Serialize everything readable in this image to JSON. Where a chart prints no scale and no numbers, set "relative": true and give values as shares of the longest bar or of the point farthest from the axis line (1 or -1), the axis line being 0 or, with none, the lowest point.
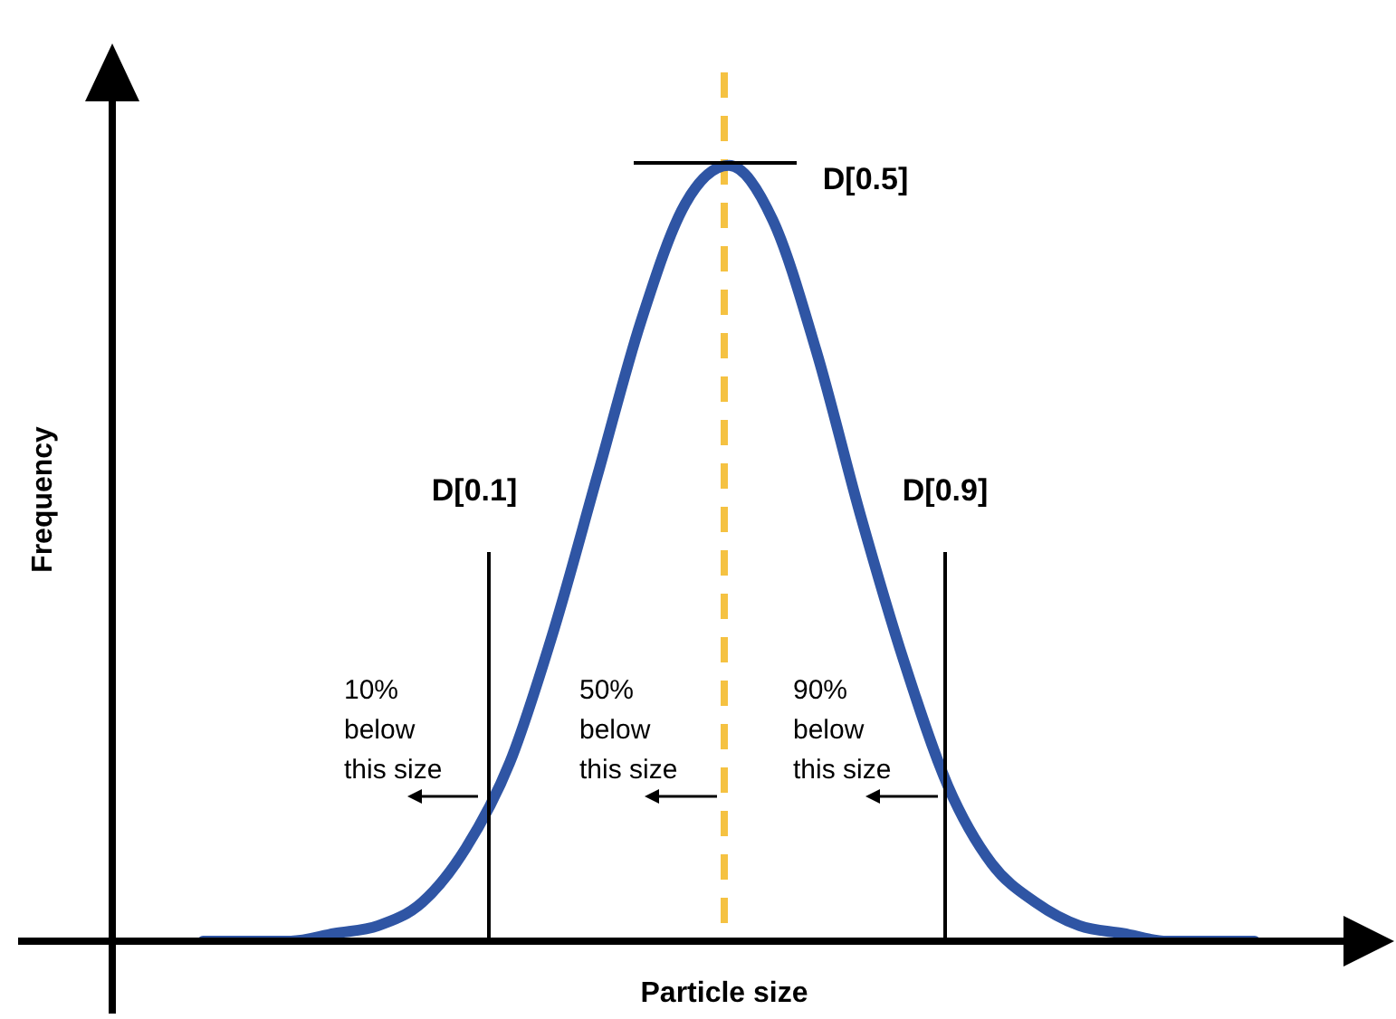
{
  "chart_data": {
    "type": "line",
    "relative": true,
    "xlabel": "Particle size",
    "ylabel": "Frequency",
    "categories": [
      null,
      null,
      null,
      null,
      null,
      null,
      null,
      null,
      null,
      null,
      null,
      null,
      null,
      null,
      null,
      null,
      null,
      null,
      null,
      null,
      null,
      null,
      null,
      null,
      null
    ],
    "series": [
      {
        "color": "#2f55a4",
        "values": [
          0,
          0,
          0,
          0.01,
          0.02,
          0.05,
          0.12,
          0.23,
          0.4,
          0.6,
          0.8,
          0.95,
          1,
          0.93,
          0.76,
          0.55,
          0.36,
          0.2,
          0.1,
          0.05,
          0.02,
          0.01,
          0,
          0,
          0
        ]
      }
    ],
    "annotations": [
      "D[0.1]",
      "D[0.5]",
      "D[0.9]",
      "10%\nbelow\nthis size",
      "50%\nbelow\nthis size",
      "90%\nbelow\nthis size"
    ],
    "legend": false,
    "marker": "none",
    "line_style": "solid"
  }
}
